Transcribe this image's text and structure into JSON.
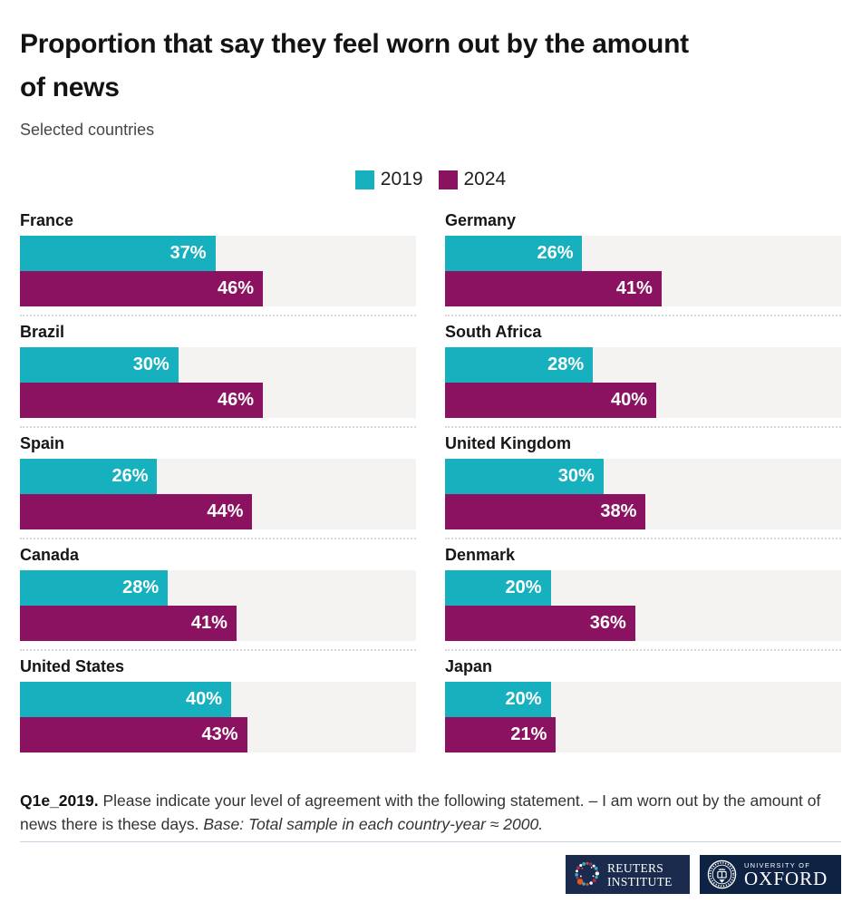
{
  "header": {
    "title": "Proportion that say they feel worn out by the amount\nof news",
    "subtitle": "Selected countries"
  },
  "legend": {
    "items": [
      {
        "label": "2019",
        "color": "#17b0bf"
      },
      {
        "label": "2024",
        "color": "#8b1261"
      }
    ]
  },
  "chart_data": {
    "type": "bar",
    "orientation": "horizontal",
    "title": "Proportion that say they feel worn out by the amount of news",
    "subtitle": "Selected countries",
    "unit": "%",
    "axis_max": 75,
    "grid": false,
    "legend_position": "top-center",
    "series_names": [
      "2019",
      "2024"
    ],
    "colors": {
      "2019": "#17b0bf",
      "2024": "#8b1261"
    },
    "track_color": "#f4f3f1",
    "columns": [
      {
        "countries": [
          {
            "name": "France",
            "values": [
              37,
              46
            ]
          },
          {
            "name": "Brazil",
            "values": [
              30,
              46
            ]
          },
          {
            "name": "Spain",
            "values": [
              26,
              44
            ]
          },
          {
            "name": "Canada",
            "values": [
              28,
              41
            ]
          },
          {
            "name": "United States",
            "values": [
              40,
              43
            ]
          }
        ]
      },
      {
        "countries": [
          {
            "name": "Germany",
            "values": [
              26,
              41
            ]
          },
          {
            "name": "South Africa",
            "values": [
              28,
              40
            ]
          },
          {
            "name": "United Kingdom",
            "values": [
              30,
              38
            ]
          },
          {
            "name": "Denmark",
            "values": [
              20,
              36
            ]
          },
          {
            "name": "Japan",
            "values": [
              20,
              21
            ]
          }
        ]
      }
    ]
  },
  "footer": {
    "question_id": "Q1e_2019.",
    "question_text": "Please indicate your level of agreement with the following statement. – I am worn out by the amount of news there is these days.",
    "base_text": "Base: Total sample in each country-year ≈ 2000."
  },
  "logos": {
    "reuters": {
      "line1": "REUTERS",
      "line2": "INSTITUTE"
    },
    "oxford": {
      "line1": "UNIVERSITY OF",
      "line2": "OXFORD"
    }
  }
}
